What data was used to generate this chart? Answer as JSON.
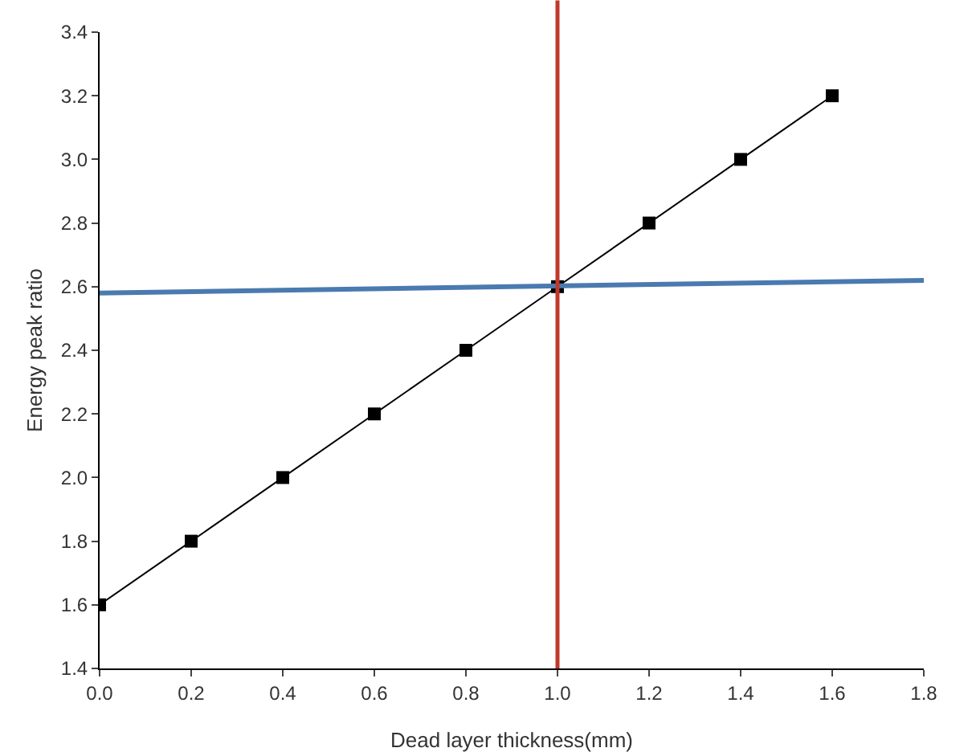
{
  "chart_data": {
    "type": "line",
    "xlabel": "Dead layer thickness(mm)",
    "ylabel": "Energy peak ratio",
    "x": [
      0,
      0.2,
      0.4,
      0.6,
      0.8,
      1.0,
      1.2,
      1.4,
      1.6
    ],
    "series": [
      {
        "color": "#000000",
        "values": [
          1.6,
          1.8,
          2.0,
          2.2,
          2.4,
          2.6,
          2.8,
          3.0,
          3.2
        ],
        "marker": "square"
      },
      {
        "type": "line",
        "color": "#4a7ab0",
        "x": [
          0,
          1.8
        ],
        "values": [
          2.58,
          2.62
        ],
        "marker": "none"
      }
    ],
    "ref_lines": [
      {
        "axis": "x",
        "value": 1.0,
        "color": "#c0392b",
        "line_style": "solid"
      }
    ],
    "xlim": [
      0,
      1.8
    ],
    "xticks": [
      {
        "value": 0,
        "label": "0.0"
      },
      {
        "value": 0.2,
        "label": "0.2"
      },
      {
        "value": 0.4,
        "label": "0.4"
      },
      {
        "value": 0.6,
        "label": "0.6"
      },
      {
        "value": 0.8,
        "label": "0.8"
      },
      {
        "value": 1.0,
        "label": "1.0"
      },
      {
        "value": 1.2,
        "label": "1.2"
      },
      {
        "value": 1.4,
        "label": "1.4"
      },
      {
        "value": 1.6,
        "label": "1.6"
      },
      {
        "value": 1.8,
        "label": "1.8"
      }
    ],
    "ylim": [
      1.4,
      3.4
    ],
    "yticks": [
      {
        "value": 1.4,
        "label": "1.4"
      },
      {
        "value": 1.6,
        "label": "1.6"
      },
      {
        "value": 1.8,
        "label": "1.8"
      },
      {
        "value": 2.0,
        "label": "2.0"
      },
      {
        "value": 2.2,
        "label": "2.2"
      },
      {
        "value": 2.4,
        "label": "2.4"
      },
      {
        "value": 2.6,
        "label": "2.6"
      },
      {
        "value": 2.8,
        "label": "2.8"
      },
      {
        "value": 3.0,
        "label": "3.0"
      },
      {
        "value": 3.2,
        "label": "3.2"
      },
      {
        "value": 3.4,
        "label": "3.4"
      }
    ],
    "grid": false
  }
}
